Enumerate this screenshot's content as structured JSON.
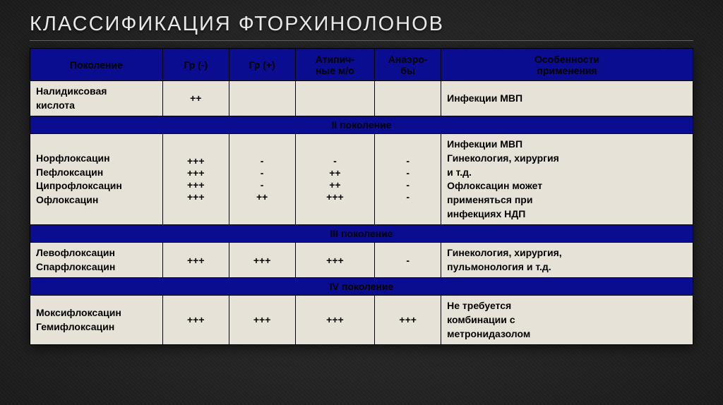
{
  "title": "КЛАССИФИКАЦИЯ ФТОРХИНОЛОНОВ",
  "columns": {
    "name": "Поколение",
    "gr_neg": "Гр (-)",
    "gr_pos": "Гр (+)",
    "atypical": "Атипич-\nные м/о",
    "anaerobes": "Анаэро-\nбы",
    "notes": "Особенности\nприменения"
  },
  "gen1": {
    "name_lines": [
      "Налидиксовая",
      "кислота"
    ],
    "gr_neg": "++",
    "gr_pos": "",
    "atypical": "",
    "anaerobes": "",
    "notes_lines": [
      "Инфекции МВП"
    ]
  },
  "gen2": {
    "label": "II поколение",
    "name_lines": [
      "Норфлоксацин",
      "Пефлоксацин",
      "Ципрофлоксацин",
      "Офлоксацин"
    ],
    "gr_neg_lines": [
      "+++",
      "+++",
      "+++",
      "+++"
    ],
    "gr_pos_lines": [
      "-",
      "-",
      "-",
      "++"
    ],
    "atypical_lines": [
      "-",
      "++",
      "++",
      "+++"
    ],
    "anaerobes_lines": [
      "-",
      "-",
      "-",
      "-"
    ],
    "notes_lines": [
      "Инфекции МВП",
      "Гинекология, хирургия",
      "и т.д.",
      "Офлоксацин может",
      "применяться при",
      "инфекциях НДП"
    ]
  },
  "gen3": {
    "label": "III поколение",
    "name_lines": [
      "Левофлоксацин",
      "Спарфлоксацин"
    ],
    "gr_neg": "+++",
    "gr_pos": "+++",
    "atypical": "+++",
    "anaerobes": "-",
    "notes_lines": [
      "Гинекология, хирургия,",
      "пульмонология и т.д."
    ]
  },
  "gen4": {
    "label": "IV поколение",
    "name_lines": [
      "Моксифлоксацин",
      "Гемифлоксацин"
    ],
    "gr_neg": "+++",
    "gr_pos": "+++",
    "atypical": "+++",
    "anaerobes": "+++",
    "notes_lines": [
      "Не требуется",
      "комбинации с",
      "метронидазолом"
    ]
  },
  "style": {
    "header_bg": "#0a0d8f",
    "cell_bg": "#e6e2d8",
    "border_color": "#000000",
    "title_color": "#e8e8ea",
    "title_fontsize_pt": 22,
    "cell_fontsize_pt": 11,
    "font_weight": 700
  }
}
